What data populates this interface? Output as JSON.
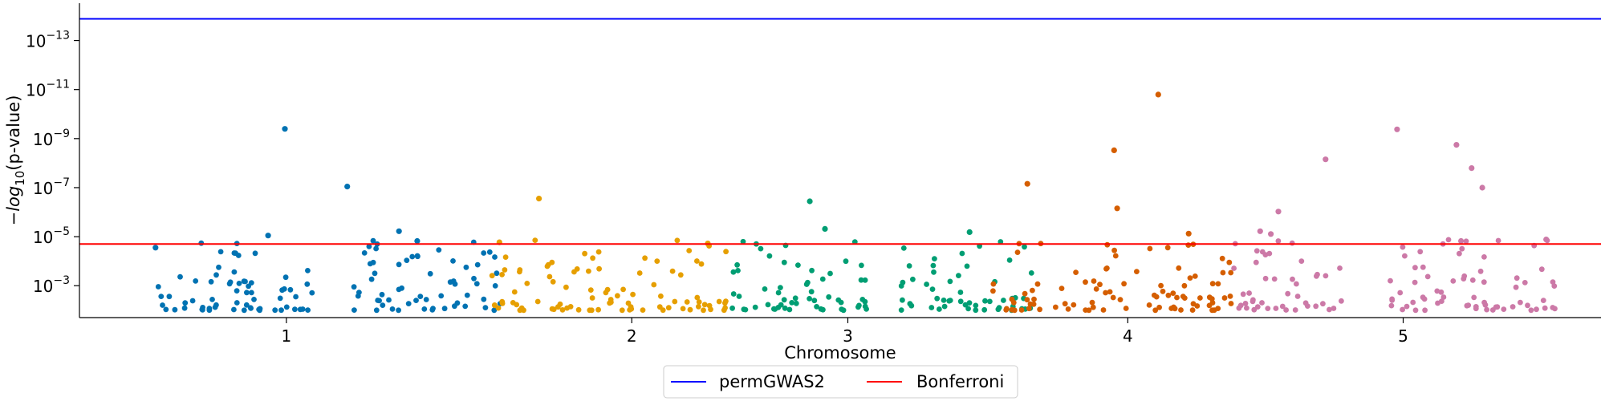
{
  "chart_data": {
    "type": "scatter",
    "title": "",
    "xlabel": "Chromosome",
    "ylabel": "-log10(p-value)",
    "ylabel_parts": {
      "minus": "−",
      "base": "log",
      "sub": "10",
      "rest": "(p-value)"
    },
    "yscale": "log-inverted",
    "ylim": [
      0.02,
      3e-15
    ],
    "yticks": [
      {
        "value": 1e-13,
        "mant": "10",
        "exp": "−13"
      },
      {
        "value": 1e-11,
        "mant": "10",
        "exp": "−11"
      },
      {
        "value": 1e-09,
        "mant": "10",
        "exp": "−9"
      },
      {
        "value": 1e-07,
        "mant": "10",
        "exp": "−7"
      },
      {
        "value": 1e-05,
        "mant": "10",
        "exp": "−5"
      },
      {
        "value": 0.001,
        "mant": "10",
        "exp": "−3"
      }
    ],
    "xlim": [
      0,
      1
    ],
    "xticks": [
      {
        "pos": 0.136,
        "label": "1"
      },
      {
        "pos": 0.363,
        "label": "2"
      },
      {
        "pos": 0.505,
        "label": "3"
      },
      {
        "pos": 0.689,
        "label": "4"
      },
      {
        "pos": 0.87,
        "label": "5"
      }
    ],
    "thresholds": [
      {
        "name": "permGWAS2",
        "value": 1.3e-14,
        "color": "#0000ff"
      },
      {
        "name": "Bonferroni",
        "value": 2e-05,
        "color": "#ff0000"
      }
    ],
    "legend_placement": "bottom-center",
    "grid": false,
    "series_colors": [
      "#0072b2",
      "#e69f00",
      "#009e73",
      "#d55e00",
      "#cc79a7"
    ],
    "notable_points": [
      {
        "x": 0.135,
        "y": 4e-10,
        "color_index": 0
      },
      {
        "x": 0.176,
        "y": 9e-08,
        "color_index": 0
      },
      {
        "x": 0.21,
        "y": 6e-06,
        "color_index": 0
      },
      {
        "x": 0.222,
        "y": 1.5e-05,
        "color_index": 0
      },
      {
        "x": 0.05,
        "y": 2.8e-05,
        "color_index": 0
      },
      {
        "x": 0.124,
        "y": 9e-06,
        "color_index": 0
      },
      {
        "x": 0.276,
        "y": 1.7e-05,
        "color_index": 1
      },
      {
        "x": 0.302,
        "y": 2.8e-07,
        "color_index": 1
      },
      {
        "x": 0.413,
        "y": 1.9e-05,
        "color_index": 1
      },
      {
        "x": 0.48,
        "y": 3.6e-07,
        "color_index": 2
      },
      {
        "x": 0.49,
        "y": 4.8e-06,
        "color_index": 2
      },
      {
        "x": 0.585,
        "y": 6.5e-06,
        "color_index": 2
      },
      {
        "x": 0.623,
        "y": 7e-08,
        "color_index": 3
      },
      {
        "x": 0.68,
        "y": 3e-09,
        "color_index": 3
      },
      {
        "x": 0.682,
        "y": 7e-07,
        "color_index": 3
      },
      {
        "x": 0.709,
        "y": 1.6e-11,
        "color_index": 3
      },
      {
        "x": 0.729,
        "y": 7.5e-06,
        "color_index": 3
      },
      {
        "x": 0.788,
        "y": 9.5e-07,
        "color_index": 4
      },
      {
        "x": 0.776,
        "y": 6e-06,
        "color_index": 4
      },
      {
        "x": 0.783,
        "y": 7.8e-06,
        "color_index": 4
      },
      {
        "x": 0.819,
        "y": 7e-09,
        "color_index": 4
      },
      {
        "x": 0.866,
        "y": 4.2e-10,
        "color_index": 4
      },
      {
        "x": 0.905,
        "y": 1.8e-09,
        "color_index": 4
      },
      {
        "x": 0.915,
        "y": 1.6e-08,
        "color_index": 4
      },
      {
        "x": 0.922,
        "y": 1e-07,
        "color_index": 4
      },
      {
        "x": 0.908,
        "y": 1.5e-05,
        "color_index": 4
      },
      {
        "x": 0.964,
        "y": 1.3e-05,
        "color_index": 4
      }
    ]
  }
}
